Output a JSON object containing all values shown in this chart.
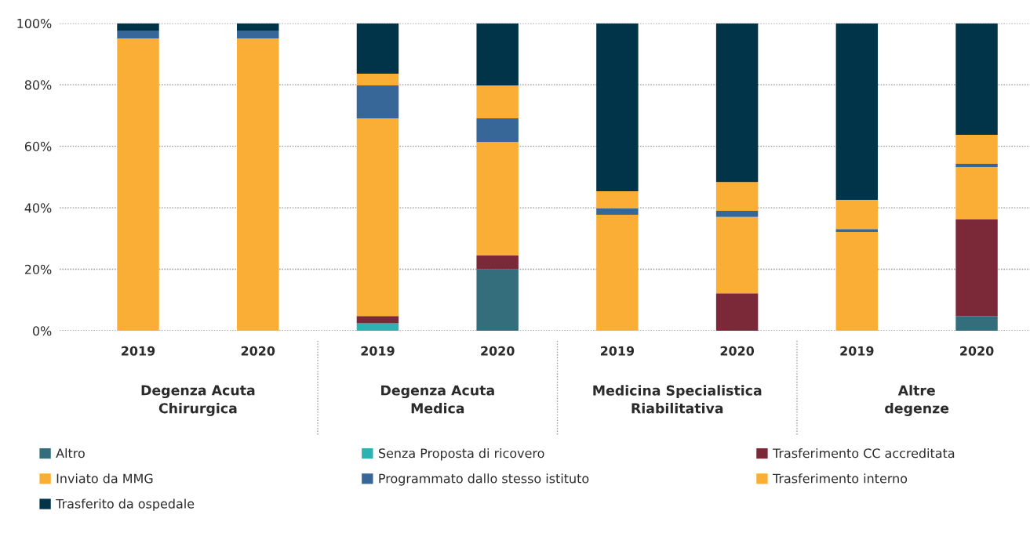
{
  "chart_data": {
    "type": "bar",
    "stacked": true,
    "categories": [
      "2019",
      "2020",
      "2019",
      "2020",
      "2019",
      "2020",
      "2019",
      "2020"
    ],
    "series": [
      {
        "name": "Altro",
        "color": "#346e7c",
        "values": [
          null,
          null,
          null,
          20.1,
          null,
          null,
          null,
          4.8
        ]
      },
      {
        "name": "Senza Proposta di ricovero",
        "color": "#2db1b1",
        "values": [
          null,
          null,
          2.4,
          null,
          null,
          null,
          null,
          null
        ]
      },
      {
        "name": "Trasferimento CC accreditata",
        "color": "#7b2838",
        "values": [
          null,
          null,
          2.4,
          4.4,
          null,
          12.2,
          null,
          31.4
        ]
      },
      {
        "name": "Inviato da MMG",
        "color": "#fbae35",
        "values": [
          95.1,
          95.1,
          64.3,
          36.9,
          37.7,
          24.8,
          32.1,
          17.1
        ]
      },
      {
        "name": "Programmato dallo stesso istituto",
        "color": "#376799",
        "values": [
          2.5,
          2.5,
          10.7,
          7.7,
          2.1,
          2.0,
          1.0,
          1.0
        ]
      },
      {
        "name": "Trasferimento interno",
        "color": "#fbae35",
        "values": [
          null,
          null,
          3.8,
          10.7,
          5.6,
          9.4,
          9.5,
          9.4
        ]
      },
      {
        "name": "Trasferito da ospedale",
        "color": "#023449",
        "values": [
          2.4,
          2.4,
          16.4,
          20.2,
          54.6,
          51.6,
          57.4,
          36.3
        ]
      }
    ],
    "ylim": [
      0,
      100
    ],
    "yticks": [
      {
        "value": 0,
        "label": "0%"
      },
      {
        "value": 20,
        "label": "20%"
      },
      {
        "value": 40,
        "label": "40%"
      },
      {
        "value": 60,
        "label": "60%"
      },
      {
        "value": 80,
        "label": "80%"
      },
      {
        "value": 100,
        "label": "100%"
      }
    ],
    "grid": "y",
    "legend": "bottom",
    "annotations": [
      "Degenza Acuta\nChirurgica",
      "Degenza Acuta\nMedica",
      "Medicina Specialistica\nRiabilitativa",
      "Altre\ndegenze"
    ]
  }
}
